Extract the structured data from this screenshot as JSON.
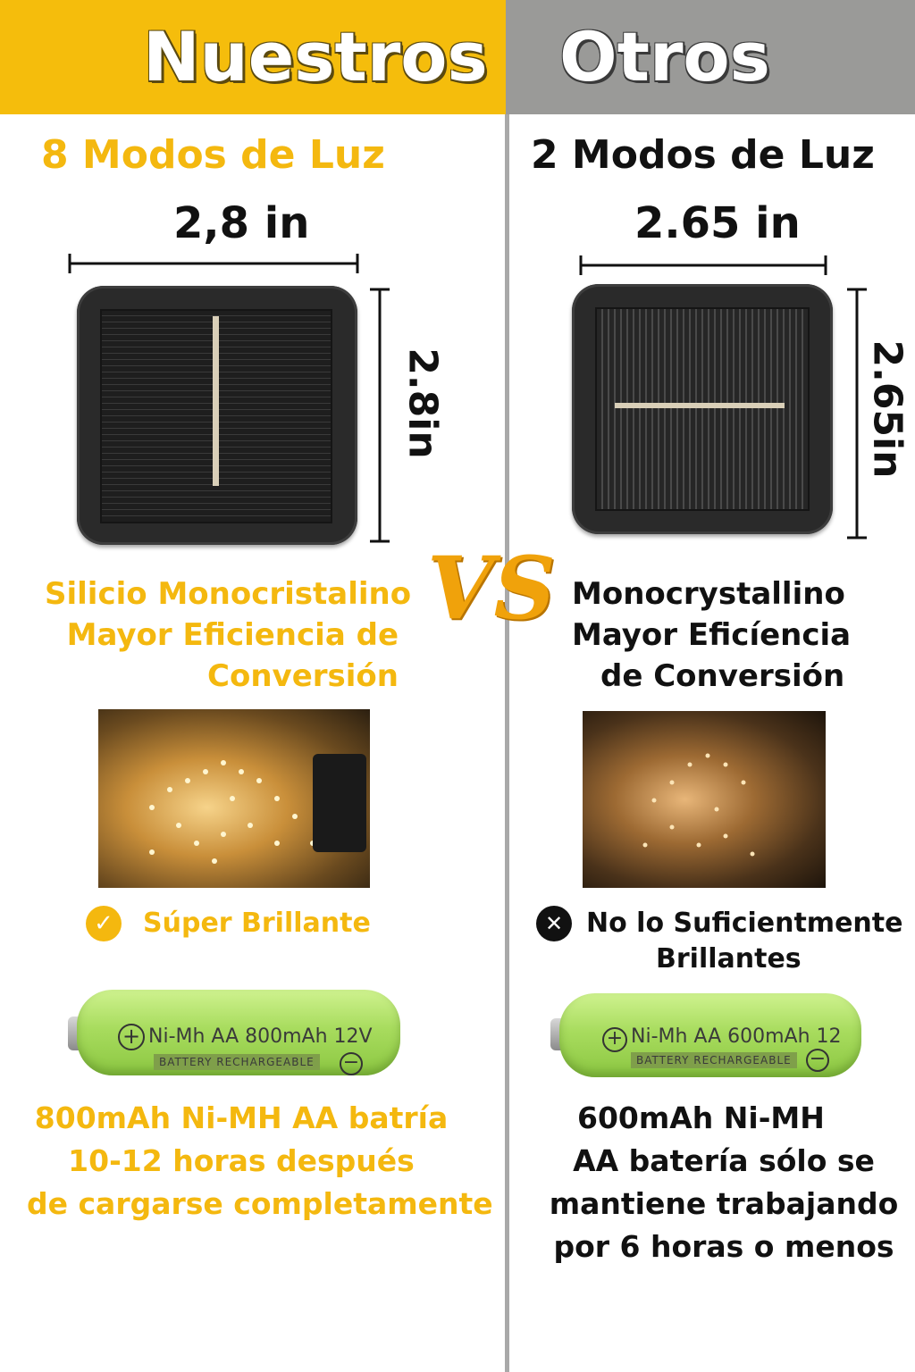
{
  "header": {
    "left_title": "Nuestros",
    "right_title": "Otros"
  },
  "colors": {
    "accent": "#f4b80f",
    "gray": "#9a9a98",
    "text_dark": "#111111"
  },
  "left": {
    "modes": "8 Modos de Luz",
    "width_label": "2,8 in",
    "height_label": "2.8in",
    "description": [
      "Silicio Monocristalino",
      "Mayor Eficiencia de",
      "Conversión"
    ],
    "brightness": "Súper Brillante",
    "battery_label": "Ni-Mh  AA  800mAh  12V",
    "battery_sub": "BATTERY RECHARGEABLE",
    "bottom_text": [
      "800mAh Ni-MH AA batría",
      "10-12 horas después",
      "de cargarse completamente"
    ]
  },
  "vs": "VS",
  "right": {
    "modes": "2 Modos de Luz",
    "width_label": "2.65 in",
    "height_label": "2.65in",
    "description": [
      "Monocrystallino",
      "Mayor Eficíencia",
      "de Conversión"
    ],
    "brightness": [
      "No lo Suficientmente",
      "Brillantes"
    ],
    "battery_label": "Ni-Mh  AA  600mAh  12",
    "battery_sub": "BATTERY RECHARGEABLE",
    "bottom_text": [
      "600mAh Ni-MH",
      "AA batería sólo se",
      "mantiene trabajando",
      "por 6 horas o menos"
    ]
  },
  "icons": {
    "check": "check-icon",
    "cross": "cross-icon",
    "plus": "plus-icon",
    "minus": "minus-icon"
  }
}
